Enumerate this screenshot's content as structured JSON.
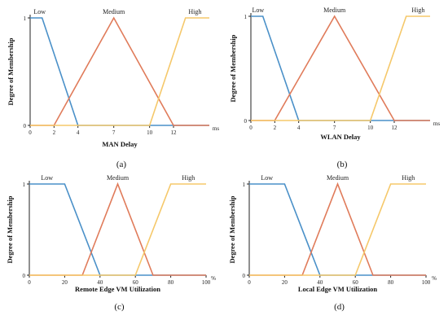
{
  "figure": {
    "panel_captions": [
      "(a)",
      "(b)",
      "(c)",
      "(d)"
    ]
  },
  "colors": {
    "low": "#4a90c8",
    "medium": "#e07b5a",
    "high": "#f5c86a",
    "axis": "#222222"
  },
  "chart_data": [
    {
      "type": "line",
      "panel_label": "(a)",
      "xlabel": "MAN Delay",
      "ylabel": "Degree of Membership",
      "x_unit": "ms",
      "xlim": [
        0,
        15
      ],
      "ylim": [
        0,
        1
      ],
      "x_ticks": [
        0,
        2,
        4,
        7,
        10,
        12
      ],
      "y_ticks": [
        0,
        1
      ],
      "grid": false,
      "series": [
        {
          "name": "Low",
          "color_key": "low",
          "points": [
            [
              0,
              1
            ],
            [
              1,
              1
            ],
            [
              4,
              0
            ],
            [
              15,
              0
            ]
          ]
        },
        {
          "name": "Medium",
          "color_key": "medium",
          "points": [
            [
              0,
              0
            ],
            [
              2,
              0
            ],
            [
              7,
              1
            ],
            [
              12,
              0
            ],
            [
              15,
              0
            ]
          ]
        },
        {
          "name": "High",
          "color_key": "high",
          "points": [
            [
              0,
              0
            ],
            [
              10,
              0
            ],
            [
              13,
              1
            ],
            [
              15,
              1
            ]
          ]
        }
      ],
      "series_label_positions_x": [
        0.8,
        7,
        13.8
      ]
    },
    {
      "type": "line",
      "panel_label": "(b)",
      "xlabel": "WLAN Delay",
      "ylabel": "Degree of Membership",
      "x_unit": "ms",
      "xlim": [
        0,
        15
      ],
      "ylim": [
        0,
        1
      ],
      "x_ticks": [
        0,
        2,
        4,
        7,
        10,
        12
      ],
      "y_ticks": [
        0,
        1
      ],
      "grid": false,
      "series": [
        {
          "name": "Low",
          "color_key": "low",
          "points": [
            [
              0,
              1
            ],
            [
              1,
              1
            ],
            [
              4,
              0
            ],
            [
              15,
              0
            ]
          ]
        },
        {
          "name": "Medium",
          "color_key": "medium",
          "points": [
            [
              0,
              0
            ],
            [
              2,
              0
            ],
            [
              7,
              1
            ],
            [
              12,
              0
            ],
            [
              15,
              0
            ]
          ]
        },
        {
          "name": "High",
          "color_key": "high",
          "points": [
            [
              0,
              0
            ],
            [
              10,
              0
            ],
            [
              13,
              1
            ],
            [
              15,
              1
            ]
          ]
        }
      ],
      "series_label_positions_x": [
        0.6,
        7,
        14
      ]
    },
    {
      "type": "line",
      "panel_label": "(c)",
      "xlabel": "Remote Edge VM Utilization",
      "ylabel": "Degree of Membership",
      "x_unit": "%",
      "xlim": [
        0,
        100
      ],
      "ylim": [
        0,
        1
      ],
      "x_ticks": [
        0,
        20,
        40,
        60,
        80,
        100
      ],
      "y_ticks": [
        0,
        1
      ],
      "grid": false,
      "series": [
        {
          "name": "Low",
          "color_key": "low",
          "points": [
            [
              0,
              1
            ],
            [
              20,
              1
            ],
            [
              40,
              0
            ],
            [
              100,
              0
            ]
          ]
        },
        {
          "name": "Medium",
          "color_key": "medium",
          "points": [
            [
              0,
              0
            ],
            [
              30,
              0
            ],
            [
              50,
              1
            ],
            [
              70,
              0
            ],
            [
              100,
              0
            ]
          ]
        },
        {
          "name": "High",
          "color_key": "high",
          "points": [
            [
              0,
              0
            ],
            [
              60,
              0
            ],
            [
              80,
              1
            ],
            [
              100,
              1
            ]
          ]
        }
      ],
      "series_label_positions_x": [
        10,
        50,
        90
      ]
    },
    {
      "type": "line",
      "panel_label": "(d)",
      "xlabel": "Local Edge VM Utilization",
      "ylabel": "Degree of Membership",
      "x_unit": "%",
      "xlim": [
        0,
        100
      ],
      "ylim": [
        0,
        1
      ],
      "x_ticks": [
        0,
        20,
        40,
        60,
        80,
        100
      ],
      "y_ticks": [
        0,
        1
      ],
      "grid": false,
      "series": [
        {
          "name": "Low",
          "color_key": "low",
          "points": [
            [
              0,
              1
            ],
            [
              20,
              1
            ],
            [
              40,
              0
            ],
            [
              100,
              0
            ]
          ]
        },
        {
          "name": "Medium",
          "color_key": "medium",
          "points": [
            [
              0,
              0
            ],
            [
              30,
              0
            ],
            [
              50,
              1
            ],
            [
              70,
              0
            ],
            [
              100,
              0
            ]
          ]
        },
        {
          "name": "High",
          "color_key": "high",
          "points": [
            [
              0,
              0
            ],
            [
              60,
              0
            ],
            [
              80,
              1
            ],
            [
              100,
              1
            ]
          ]
        }
      ],
      "series_label_positions_x": [
        10,
        50,
        90
      ]
    }
  ]
}
